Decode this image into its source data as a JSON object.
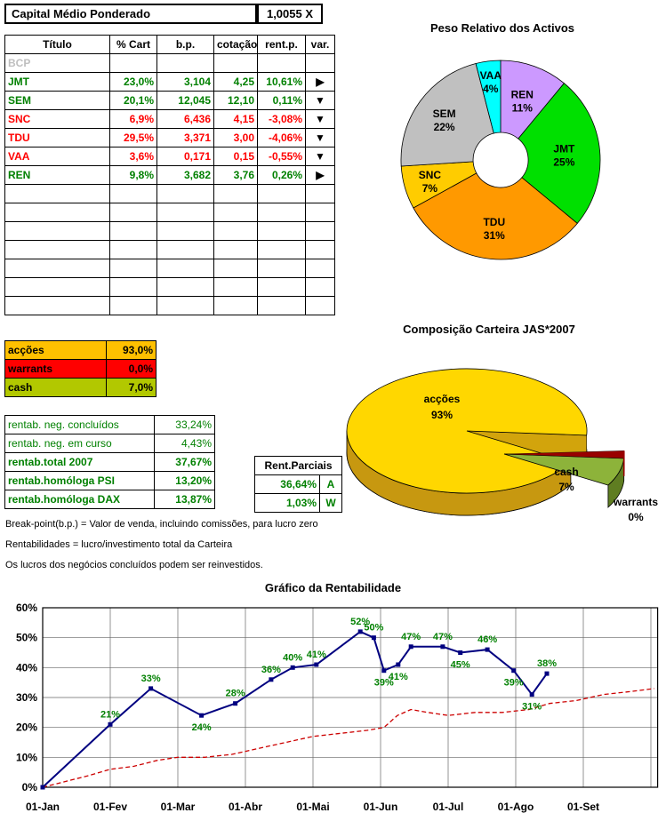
{
  "header": {
    "label": "Capital Médio Ponderado",
    "value": "1,0055 X"
  },
  "positions_table": {
    "columns": [
      "Título",
      "% Cart",
      "b.p.",
      "cotação",
      "rent.p.",
      "var."
    ],
    "rows": [
      {
        "titulo": "BCP",
        "cart": "",
        "bp": "",
        "cot": "",
        "rent": "",
        "arrow": "",
        "color": "#BFBFBF"
      },
      {
        "titulo": "JMT",
        "cart": "23,0%",
        "bp": "3,104",
        "cot": "4,25",
        "rent": "10,61%",
        "arrow": "▶",
        "color": "#008000"
      },
      {
        "titulo": "SEM",
        "cart": "20,1%",
        "bp": "12,045",
        "cot": "12,10",
        "rent": "0,11%",
        "arrow": "▼",
        "color": "#008000"
      },
      {
        "titulo": "SNC",
        "cart": "6,9%",
        "bp": "6,436",
        "cot": "4,15",
        "rent": "-3,08%",
        "arrow": "▼",
        "color": "#FF0000"
      },
      {
        "titulo": "TDU",
        "cart": "29,5%",
        "bp": "3,371",
        "cot": "3,00",
        "rent": "-4,06%",
        "arrow": "▼",
        "color": "#FF0000"
      },
      {
        "titulo": "VAA",
        "cart": "3,6%",
        "bp": "0,171",
        "cot": "0,15",
        "rent": "-0,55%",
        "arrow": "▼",
        "color": "#FF0000"
      },
      {
        "titulo": "REN",
        "cart": "9,8%",
        "bp": "3,682",
        "cot": "3,76",
        "rent": "0,26%",
        "arrow": "▶",
        "color": "#008000"
      }
    ],
    "empty_rows": 7
  },
  "allocation": {
    "rows": [
      {
        "label": "acções",
        "value": "93,0%",
        "bg": "#FFC000"
      },
      {
        "label": "warrants",
        "value": "0,0%",
        "bg": "#FF0000"
      },
      {
        "label": "cash",
        "value": "7,0%",
        "bg": "#B2C800"
      }
    ]
  },
  "rentab": {
    "rows": [
      {
        "label": "rentab. neg. concluídos",
        "value": "33,24%",
        "bold": false
      },
      {
        "label": "rentab. neg. em curso",
        "value": "4,43%",
        "bold": false
      },
      {
        "label": "rentab.total 2007",
        "value": "37,67%",
        "bold": true
      },
      {
        "label": "rentab.homóloga PSI",
        "value": "13,20%",
        "bold": true
      },
      {
        "label": "rentab.homóloga DAX",
        "value": "13,87%",
        "bold": true
      }
    ]
  },
  "parciais": {
    "title": "Rent.Parciais",
    "rows": [
      {
        "value": "36,64%",
        "code": "A"
      },
      {
        "value": "1,03%",
        "code": "W"
      }
    ]
  },
  "notes": [
    "Break-point(b.p.) = Valor de venda, incluindo comissões, para lucro zero",
    "Rentabilidades = lucro/investimento total da Carteira",
    "Os lucros dos negócios concluídos podem ser reinvestidos."
  ],
  "chart_data": [
    {
      "type": "pie",
      "variant": "donut",
      "title": "Peso Relativo dos Activos",
      "slices": [
        {
          "label": "REN",
          "value": 11,
          "color": "#CC99FF"
        },
        {
          "label": "JMT",
          "value": 25,
          "color": "#00E000"
        },
        {
          "label": "TDU",
          "value": 31,
          "color": "#FF9900",
          "label_r": 0.68
        },
        {
          "label": "SNC",
          "value": 7,
          "color": "#FFCC00",
          "label_r": 0.74
        },
        {
          "label": "SEM",
          "value": 22,
          "color": "#C0C0C0",
          "label_r": 0.7
        },
        {
          "label": "VAA",
          "value": 4,
          "color": "#00FFFF",
          "label_r": 0.8
        }
      ]
    },
    {
      "type": "pie",
      "variant": "3d-exploded",
      "title": "Composição Carteira JAS*2007",
      "slices": [
        {
          "label": "acções",
          "value": 93,
          "color": "#FFD700",
          "side_color": "#C79810"
        },
        {
          "label": "cash",
          "value": 7,
          "color": "#8DB33A",
          "side_color": "#5F7D21",
          "exploded": true
        },
        {
          "label": "warrants",
          "value": 0,
          "color": "#990000"
        }
      ]
    },
    {
      "type": "line",
      "title": "Gráfico da Rentabilidade",
      "x_tick_labels": [
        "01-Jan",
        "01-Fev",
        "01-Mar",
        "01-Abr",
        "01-Mai",
        "01-Jun",
        "01-Jul",
        "01-Ago",
        "01-Set"
      ],
      "ylim": [
        0,
        60
      ],
      "y_tick_step": 10,
      "y_tick_labels": [
        "0%",
        "10%",
        "20%",
        "30%",
        "40%",
        "50%",
        "60%"
      ],
      "grid": true,
      "series": [
        {
          "name": "carteira",
          "color": "#000080",
          "points": [
            [
              0,
              0
            ],
            [
              1.0,
              21
            ],
            [
              1.6,
              33
            ],
            [
              2.35,
              24
            ],
            [
              2.85,
              28
            ],
            [
              3.38,
              36
            ],
            [
              3.7,
              40
            ],
            [
              4.05,
              41
            ],
            [
              4.7,
              52
            ],
            [
              4.9,
              50
            ],
            [
              5.05,
              39
            ],
            [
              5.26,
              41
            ],
            [
              5.45,
              47
            ],
            [
              5.92,
              47
            ],
            [
              6.18,
              45
            ],
            [
              6.58,
              46
            ],
            [
              6.97,
              39
            ],
            [
              7.24,
              31
            ],
            [
              7.46,
              38
            ]
          ],
          "labels": [
            "",
            "21%",
            "33%",
            "24%",
            "28%",
            "36%",
            "40%",
            "41%",
            "52%",
            "50%",
            "39%",
            "41%",
            "47%",
            "47%",
            "45%",
            "46%",
            "39%",
            "31%",
            "38%"
          ],
          "label_pos": [
            "",
            "above",
            "above",
            "below",
            "above",
            "above",
            "above",
            "above",
            "above",
            "above",
            "below",
            "below",
            "above",
            "above",
            "below",
            "above",
            "below",
            "below",
            "above"
          ]
        },
        {
          "name": "benchmark",
          "color": "#CC0000",
          "dashed": true,
          "points": [
            [
              0,
              0
            ],
            [
              0.35,
              2
            ],
            [
              0.7,
              4
            ],
            [
              1,
              6
            ],
            [
              1.35,
              7
            ],
            [
              1.7,
              9
            ],
            [
              2,
              10
            ],
            [
              2.4,
              10
            ],
            [
              2.8,
              11
            ],
            [
              3.2,
              13
            ],
            [
              3.6,
              15
            ],
            [
              4,
              17
            ],
            [
              4.4,
              18
            ],
            [
              4.8,
              19
            ],
            [
              5.05,
              20
            ],
            [
              5.25,
              24
            ],
            [
              5.45,
              26
            ],
            [
              5.7,
              25
            ],
            [
              6,
              24
            ],
            [
              6.4,
              25
            ],
            [
              6.8,
              25
            ],
            [
              7.2,
              26
            ],
            [
              7.5,
              28
            ],
            [
              7.9,
              29
            ],
            [
              8.3,
              31
            ],
            [
              8.7,
              32
            ],
            [
              9.05,
              33
            ]
          ]
        }
      ]
    }
  ]
}
